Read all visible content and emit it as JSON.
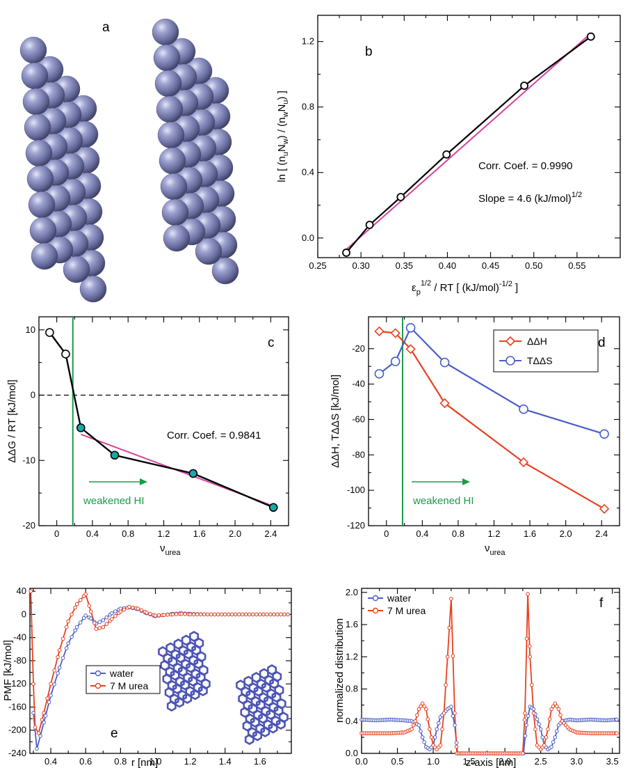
{
  "panel_a": {
    "letter": "a"
  },
  "colors": {
    "fit": "#d6439b",
    "green": "#1c9a4a",
    "red": "#e8401e",
    "blue": "#4a5ec8",
    "teal": "#19a8a8",
    "sphere": "#7b80b0"
  },
  "chart_data": [
    {
      "id": "b",
      "type": "line",
      "letter": "b",
      "xlabel": "ε_p^{1/2} / RT [ (kJ/mol)^{-1/2} ]",
      "ylabel": "ln [ (n_u N_w) / (n_w N_u) ]",
      "xlim": [
        0.25,
        0.6
      ],
      "ylim": [
        -0.12,
        1.36
      ],
      "xticks": [
        "0.25",
        "0.30",
        "0.35",
        "0.40",
        "0.45",
        "0.50",
        "0.55"
      ],
      "yticks": [
        "0.0",
        "0.4",
        "0.8",
        "1.2"
      ],
      "series": [
        {
          "x": [
            0.283,
            0.31,
            0.346,
            0.399,
            0.489,
            0.566
          ],
          "y": [
            -0.09,
            0.08,
            0.25,
            0.51,
            0.93,
            1.23
          ]
        }
      ],
      "fit": {
        "x": [
          0.283,
          0.566
        ],
        "y": [
          -0.07,
          1.25
        ]
      },
      "annotations": [
        "Corr. Coef. = 0.9990",
        "Slope = 4.6 (kJ/mol)^{1/2}"
      ]
    },
    {
      "id": "c",
      "type": "line",
      "letter": "c",
      "xlabel": "ν_urea",
      "ylabel": "ΔΔG / RT [kJ/mol]",
      "xlim": [
        -0.2,
        2.6
      ],
      "ylim": [
        -20,
        12
      ],
      "xticks": [
        "0",
        "0.4",
        "0.8",
        "1.2",
        "1.6",
        "2.0",
        "2.4"
      ],
      "yticks": [
        "-20",
        "-10",
        "0",
        "10"
      ],
      "series": [
        {
          "x": [
            -0.08,
            0.1,
            0.27,
            0.65,
            1.53,
            2.43
          ],
          "y": [
            9.6,
            6.3,
            -5.0,
            -9.2,
            -12.0,
            -17.2
          ]
        }
      ],
      "fit": {
        "x": [
          0.27,
          2.43
        ],
        "y": [
          -6.0,
          -17.0
        ]
      },
      "vline_x": 0.18,
      "annotations": [
        "Corr. Coef. = 0.9841",
        "weakened HI"
      ]
    },
    {
      "id": "d",
      "type": "line",
      "letter": "d",
      "xlabel": "ν_urea",
      "ylabel": "ΔΔH, TΔΔS [kJ/mol]",
      "xlim": [
        -0.2,
        2.6
      ],
      "ylim": [
        -120,
        -2
      ],
      "xticks": [
        "0",
        "0.4",
        "0.8",
        "1.2",
        "1.6",
        "2.0",
        "2.4"
      ],
      "yticks": [
        "-120",
        "-100",
        "-80",
        "-60",
        "-40",
        "-20"
      ],
      "series": [
        {
          "name": "ΔΔH",
          "x": [
            -0.08,
            0.1,
            0.27,
            0.65,
            1.53,
            2.43
          ],
          "y": [
            -10.2,
            -11.2,
            -20.2,
            -50.8,
            -84.2,
            -110.5
          ]
        },
        {
          "name": "TΔΔS",
          "x": [
            -0.08,
            0.1,
            0.27,
            0.65,
            1.53,
            2.43
          ],
          "y": [
            -34.2,
            -27.2,
            -8.2,
            -27.8,
            -54.2,
            -68.2
          ]
        }
      ],
      "vline_x": 0.18,
      "legend": "top-right",
      "annotations": [
        "weakened HI"
      ]
    },
    {
      "id": "e",
      "type": "line",
      "letter": "e",
      "xlabel": "r [nm]",
      "ylabel": "PMF [kJ/mol]",
      "xlim": [
        0.28,
        1.78
      ],
      "ylim": [
        -240,
        45
      ],
      "xticks": [
        "0.4",
        "0.6",
        "0.8",
        "1.0",
        "1.2",
        "1.4",
        "1.6"
      ],
      "yticks": [
        "-240",
        "-200",
        "-160",
        "-120",
        "-80",
        "-40",
        "0",
        "40"
      ],
      "series": [
        {
          "name": "water",
          "x": [
            0.3,
            0.32,
            0.34,
            0.37,
            0.4,
            0.45,
            0.5,
            0.55,
            0.6,
            0.63,
            0.66,
            0.7,
            0.75,
            0.8,
            0.85,
            0.9,
            0.95,
            1.0,
            1.05,
            1.1,
            1.15,
            1.2,
            1.3,
            1.4,
            1.5,
            1.6,
            1.7,
            1.76
          ],
          "y": [
            -170,
            -232,
            -210,
            -175,
            -140,
            -92,
            -50,
            -22,
            -2,
            -7,
            -16,
            -10,
            2,
            10,
            12,
            9,
            2,
            -3,
            -1,
            1,
            2,
            1,
            0,
            0,
            0,
            0,
            0,
            0
          ]
        },
        {
          "name": "7 M urea",
          "x": [
            0.285,
            0.3,
            0.31,
            0.33,
            0.36,
            0.4,
            0.45,
            0.5,
            0.55,
            0.6,
            0.63,
            0.66,
            0.7,
            0.75,
            0.8,
            0.85,
            0.9,
            0.95,
            1.0,
            1.05,
            1.1,
            1.15,
            1.2,
            1.3,
            1.4,
            1.5,
            1.6,
            1.7,
            1.76
          ],
          "y": [
            40,
            -120,
            -195,
            -205,
            -170,
            -120,
            -62,
            -12,
            18,
            35,
            5,
            -25,
            -22,
            -8,
            5,
            13,
            10,
            3,
            -2,
            -1,
            0,
            1,
            0,
            0,
            0,
            0,
            0,
            0,
            0
          ]
        }
      ],
      "legend": "center-left"
    },
    {
      "id": "f",
      "type": "line",
      "letter": "f",
      "xlabel": "z-axis [nm]",
      "ylabel": "normalized distribution",
      "xlim": [
        0.0,
        3.6
      ],
      "ylim": [
        0.0,
        2.05
      ],
      "xticks": [
        "0.0",
        "0.5",
        "1.0",
        "1.5",
        "2.0",
        "2.5",
        "3.0",
        "3.5"
      ],
      "yticks": [
        "0.0",
        "0.4",
        "0.8",
        "1.2",
        "1.6",
        "2.0"
      ],
      "series": [
        {
          "name": "water",
          "x": [
            0,
            0.2,
            0.4,
            0.6,
            0.7,
            0.8,
            0.85,
            0.9,
            0.95,
            1.0,
            1.05,
            1.1,
            1.2,
            1.25,
            1.3,
            1.34,
            1.4,
            1.6,
            1.8,
            2.0,
            2.2,
            2.26,
            2.3,
            2.35,
            2.4,
            2.5,
            2.55,
            2.6,
            2.65,
            2.7,
            2.75,
            2.8,
            2.9,
            3.0,
            3.2,
            3.4,
            3.56
          ],
          "y": [
            0.42,
            0.41,
            0.42,
            0.41,
            0.4,
            0.35,
            0.2,
            0.08,
            0.05,
            0.1,
            0.3,
            0.45,
            0.55,
            0.58,
            0.35,
            0.0,
            0.0,
            0.0,
            0.0,
            0.0,
            0.0,
            0.0,
            0.35,
            0.58,
            0.55,
            0.3,
            0.1,
            0.05,
            0.08,
            0.2,
            0.35,
            0.4,
            0.42,
            0.41,
            0.42,
            0.41,
            0.42
          ]
        },
        {
          "name": "7 M urea",
          "x": [
            0,
            0.2,
            0.4,
            0.6,
            0.7,
            0.75,
            0.8,
            0.85,
            0.9,
            0.95,
            1.0,
            1.05,
            1.1,
            1.15,
            1.2,
            1.25,
            1.3,
            1.33,
            1.4,
            1.6,
            1.8,
            2.0,
            2.2,
            2.25,
            2.28,
            2.32,
            2.35,
            2.4,
            2.45,
            2.5,
            2.55,
            2.6,
            2.65,
            2.7,
            2.75,
            2.8,
            2.9,
            3.0,
            3.2,
            3.4,
            3.56
          ],
          "y": [
            0.25,
            0.25,
            0.25,
            0.26,
            0.3,
            0.4,
            0.55,
            0.62,
            0.55,
            0.3,
            0.1,
            0.05,
            0.1,
            0.5,
            1.2,
            1.92,
            0.5,
            0.0,
            0.0,
            0.0,
            0.0,
            0.0,
            0.0,
            0.0,
            0.5,
            1.98,
            1.2,
            0.5,
            0.1,
            0.05,
            0.1,
            0.3,
            0.55,
            0.62,
            0.55,
            0.4,
            0.3,
            0.26,
            0.25,
            0.25,
            0.25
          ]
        }
      ],
      "legend": "top-left"
    }
  ]
}
